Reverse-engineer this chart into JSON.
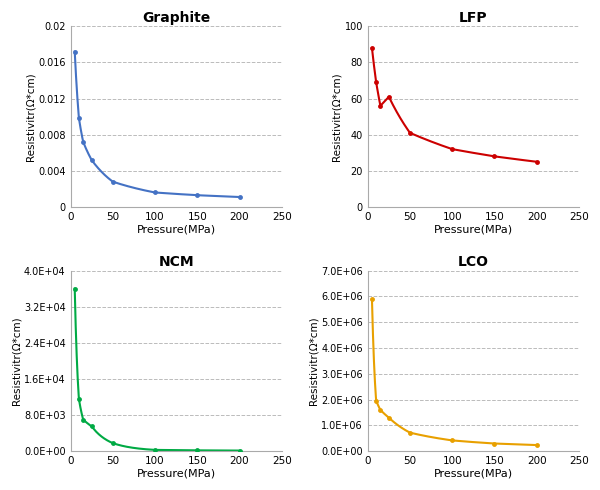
{
  "graphite": {
    "title": "Graphite",
    "color": "#4472C4",
    "x": [
      5,
      10,
      15,
      25,
      50,
      100,
      150,
      200
    ],
    "y": [
      0.0172,
      0.0098,
      0.0072,
      0.0052,
      0.0028,
      0.0016,
      0.0013,
      0.0011
    ],
    "ylim": [
      0,
      0.02
    ],
    "yticks": [
      0,
      0.004,
      0.008,
      0.012,
      0.016,
      0.02
    ],
    "ytick_labels": [
      "0",
      "0.004",
      "0.008",
      "0.012",
      "0.016",
      "0.02"
    ],
    "xlim": [
      0,
      250
    ],
    "xticks": [
      0,
      50,
      100,
      150,
      200,
      250
    ]
  },
  "lfp": {
    "title": "LFP",
    "color": "#CC0000",
    "x": [
      5,
      10,
      15,
      25,
      50,
      100,
      150,
      200
    ],
    "y": [
      88,
      69,
      56,
      61,
      41,
      32,
      28,
      25
    ],
    "ylim": [
      0,
      100
    ],
    "yticks": [
      0,
      20,
      40,
      60,
      80,
      100
    ],
    "ytick_labels": [
      "0",
      "20",
      "40",
      "60",
      "80",
      "100"
    ],
    "xlim": [
      0,
      250
    ],
    "xticks": [
      0,
      50,
      100,
      150,
      200,
      250
    ]
  },
  "ncm": {
    "title": "NCM",
    "color": "#00AA44",
    "x": [
      5,
      10,
      15,
      25,
      50,
      100,
      150,
      200
    ],
    "y": [
      36000,
      11500,
      7000,
      5500,
      1800,
      300,
      200,
      150
    ],
    "ylim": [
      0,
      40000
    ],
    "yticks": [
      0,
      8000,
      16000,
      24000,
      32000,
      40000
    ],
    "ytick_labels": [
      "0.0E+00",
      "8.0E+03",
      "1.6E+04",
      "2.4E+04",
      "3.2E+04",
      "4.0E+04"
    ],
    "xlim": [
      0,
      250
    ],
    "xticks": [
      0,
      50,
      100,
      150,
      200,
      250
    ]
  },
  "lco": {
    "title": "LCO",
    "color": "#E8A000",
    "x": [
      5,
      10,
      15,
      25,
      50,
      100,
      150,
      200
    ],
    "y": [
      5900000,
      1950000,
      1600000,
      1300000,
      720000,
      420000,
      300000,
      240000
    ],
    "ylim": [
      0,
      7000000
    ],
    "yticks": [
      0,
      1000000,
      2000000,
      3000000,
      4000000,
      5000000,
      6000000,
      7000000
    ],
    "ytick_labels": [
      "0.0E+00",
      "1.0E+06",
      "2.0E+06",
      "3.0E+06",
      "4.0E+06",
      "5.0E+06",
      "6.0E+06",
      "7.0E+06"
    ],
    "xlim": [
      0,
      250
    ],
    "xticks": [
      0,
      50,
      100,
      150,
      200,
      250
    ]
  },
  "ylabel": "Resistivitr(Ω*cm)",
  "xlabel": "Pressure(MPa)",
  "bg_color": "#FFFFFF",
  "grid_color": "#BBBBBB"
}
